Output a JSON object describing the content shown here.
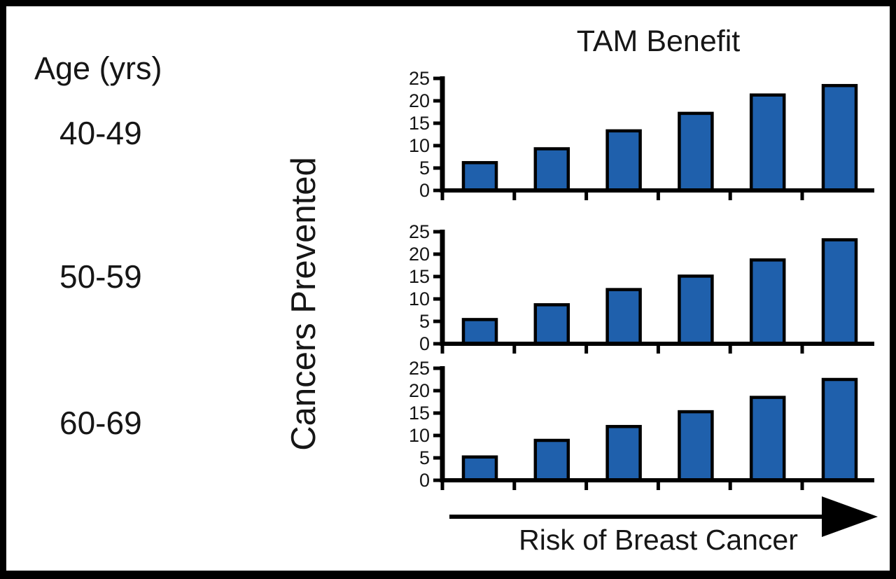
{
  "figure": {
    "title": "TAM Benefit",
    "age_heading": "Age (yrs)",
    "y_axis_label": "Cancers Prevented",
    "x_axis_label": "Risk of Breast Cancer"
  },
  "colors": {
    "bar_fill": "#1F60AC",
    "bar_stroke": "#000000",
    "axis": "#000000",
    "text": "#161616"
  },
  "chart_data": [
    {
      "type": "bar",
      "age_group": "40-49",
      "title": "TAM Benefit",
      "xlabel": "Risk of Breast Cancer",
      "ylabel": "Cancers Prevented",
      "ylim": [
        0,
        25
      ],
      "yticks": [
        0,
        5,
        10,
        15,
        20,
        25
      ],
      "values": [
        6.2,
        9.3,
        13.3,
        17.2,
        21.3,
        23.4
      ],
      "grid": false,
      "x_axis_note": "six unlabeled increasing-risk categories"
    },
    {
      "type": "bar",
      "age_group": "50-59",
      "title": "TAM Benefit",
      "xlabel": "Risk of Breast Cancer",
      "ylabel": "Cancers Prevented",
      "ylim": [
        0,
        25
      ],
      "yticks": [
        0,
        5,
        10,
        15,
        20,
        25
      ],
      "values": [
        5.4,
        8.7,
        12.1,
        15.1,
        18.7,
        23.2
      ],
      "grid": false,
      "x_axis_note": "six unlabeled increasing-risk categories"
    },
    {
      "type": "bar",
      "age_group": "60-69",
      "title": "TAM Benefit",
      "xlabel": "Risk of Breast Cancer",
      "ylabel": "Cancers Prevented",
      "ylim": [
        0,
        25
      ],
      "yticks": [
        0,
        5,
        10,
        15,
        20,
        25
      ],
      "values": [
        5.2,
        8.9,
        12.0,
        15.3,
        18.5,
        22.5
      ],
      "grid": false,
      "x_axis_note": "six unlabeled increasing-risk categories"
    }
  ]
}
